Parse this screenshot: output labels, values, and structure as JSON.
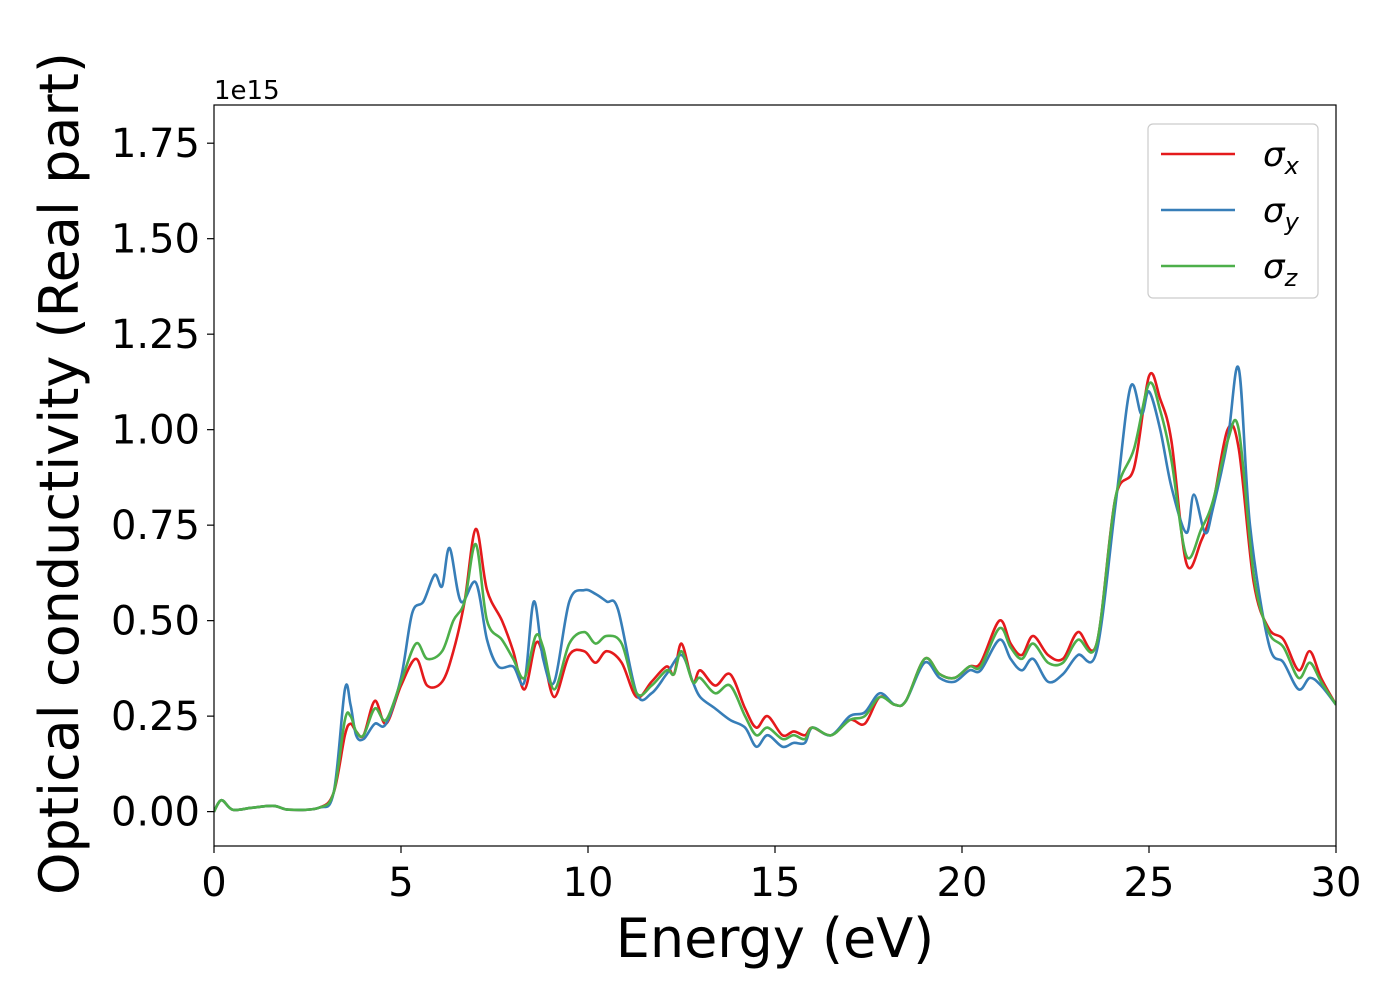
{
  "chart_data": {
    "type": "line",
    "xlabel": "Energy (eV)",
    "ylabel": "Optical conductivity (Real part)",
    "y_offset_label": "1e15",
    "xlim": [
      0,
      30
    ],
    "ylim": [
      -0.09,
      1.85
    ],
    "x_ticks": [
      0,
      5,
      10,
      15,
      20,
      25,
      30
    ],
    "y_ticks": [
      0.0,
      0.25,
      0.5,
      0.75,
      1.0,
      1.25,
      1.5,
      1.75
    ],
    "grid": false,
    "legend_position": "top-right",
    "series": [
      {
        "name": "σx",
        "symbol": "σ",
        "subscript": "x",
        "color": "#e41a1c",
        "points": [
          [
            0,
            0
          ],
          [
            0.2,
            0.03
          ],
          [
            0.5,
            0.005
          ],
          [
            1,
            0.01
          ],
          [
            1.6,
            0.015
          ],
          [
            2,
            0.005
          ],
          [
            2.8,
            0.01
          ],
          [
            3.2,
            0.05
          ],
          [
            3.5,
            0.2
          ],
          [
            3.65,
            0.23
          ],
          [
            3.8,
            0.21
          ],
          [
            4,
            0.2
          ],
          [
            4.3,
            0.29
          ],
          [
            4.6,
            0.23
          ],
          [
            5,
            0.33
          ],
          [
            5.4,
            0.4
          ],
          [
            5.7,
            0.33
          ],
          [
            6.1,
            0.34
          ],
          [
            6.4,
            0.42
          ],
          [
            6.7,
            0.55
          ],
          [
            7,
            0.74
          ],
          [
            7.3,
            0.58
          ],
          [
            7.7,
            0.5
          ],
          [
            8,
            0.42
          ],
          [
            8.3,
            0.32
          ],
          [
            8.6,
            0.44
          ],
          [
            8.8,
            0.41
          ],
          [
            9.1,
            0.3
          ],
          [
            9.5,
            0.41
          ],
          [
            9.9,
            0.42
          ],
          [
            10.2,
            0.39
          ],
          [
            10.5,
            0.42
          ],
          [
            10.9,
            0.39
          ],
          [
            11.3,
            0.3
          ],
          [
            11.7,
            0.34
          ],
          [
            12.1,
            0.38
          ],
          [
            12.3,
            0.36
          ],
          [
            12.5,
            0.44
          ],
          [
            12.8,
            0.34
          ],
          [
            13,
            0.37
          ],
          [
            13.4,
            0.33
          ],
          [
            13.8,
            0.36
          ],
          [
            14.2,
            0.27
          ],
          [
            14.5,
            0.22
          ],
          [
            14.8,
            0.25
          ],
          [
            15.2,
            0.2
          ],
          [
            15.5,
            0.21
          ],
          [
            15.8,
            0.2
          ],
          [
            16,
            0.22
          ],
          [
            16.5,
            0.2
          ],
          [
            17,
            0.24
          ],
          [
            17.4,
            0.23
          ],
          [
            17.8,
            0.3
          ],
          [
            18.2,
            0.28
          ],
          [
            18.5,
            0.29
          ],
          [
            19,
            0.4
          ],
          [
            19.4,
            0.36
          ],
          [
            19.8,
            0.35
          ],
          [
            20.2,
            0.38
          ],
          [
            20.5,
            0.39
          ],
          [
            21,
            0.5
          ],
          [
            21.3,
            0.44
          ],
          [
            21.6,
            0.41
          ],
          [
            21.9,
            0.46
          ],
          [
            22.3,
            0.41
          ],
          [
            22.7,
            0.4
          ],
          [
            23.1,
            0.47
          ],
          [
            23.6,
            0.44
          ],
          [
            24.1,
            0.82
          ],
          [
            24.6,
            0.9
          ],
          [
            25,
            1.14
          ],
          [
            25.3,
            1.08
          ],
          [
            25.6,
            0.97
          ],
          [
            26,
            0.65
          ],
          [
            26.4,
            0.71
          ],
          [
            26.7,
            0.8
          ],
          [
            27.1,
            1.0
          ],
          [
            27.4,
            0.95
          ],
          [
            27.8,
            0.6
          ],
          [
            28.2,
            0.48
          ],
          [
            28.6,
            0.45
          ],
          [
            29,
            0.37
          ],
          [
            29.3,
            0.42
          ],
          [
            29.6,
            0.35
          ],
          [
            30,
            0.28
          ]
        ]
      },
      {
        "name": "σy",
        "symbol": "σ",
        "subscript": "y",
        "color": "#377eb8",
        "points": [
          [
            0,
            0
          ],
          [
            0.2,
            0.03
          ],
          [
            0.5,
            0.005
          ],
          [
            1,
            0.01
          ],
          [
            1.6,
            0.015
          ],
          [
            2,
            0.005
          ],
          [
            2.8,
            0.01
          ],
          [
            3.2,
            0.05
          ],
          [
            3.5,
            0.32
          ],
          [
            3.65,
            0.28
          ],
          [
            3.8,
            0.2
          ],
          [
            4,
            0.19
          ],
          [
            4.3,
            0.23
          ],
          [
            4.6,
            0.23
          ],
          [
            5,
            0.35
          ],
          [
            5.3,
            0.52
          ],
          [
            5.6,
            0.55
          ],
          [
            5.9,
            0.62
          ],
          [
            6.1,
            0.59
          ],
          [
            6.3,
            0.69
          ],
          [
            6.6,
            0.55
          ],
          [
            7,
            0.6
          ],
          [
            7.3,
            0.45
          ],
          [
            7.6,
            0.38
          ],
          [
            8,
            0.38
          ],
          [
            8.3,
            0.34
          ],
          [
            8.55,
            0.55
          ],
          [
            8.8,
            0.4
          ],
          [
            9.1,
            0.34
          ],
          [
            9.5,
            0.55
          ],
          [
            9.9,
            0.58
          ],
          [
            10.2,
            0.57
          ],
          [
            10.5,
            0.55
          ],
          [
            10.8,
            0.53
          ],
          [
            11.3,
            0.31
          ],
          [
            11.7,
            0.31
          ],
          [
            12.1,
            0.36
          ],
          [
            12.5,
            0.41
          ],
          [
            12.8,
            0.34
          ],
          [
            13,
            0.3
          ],
          [
            13.4,
            0.27
          ],
          [
            13.8,
            0.24
          ],
          [
            14.2,
            0.22
          ],
          [
            14.5,
            0.17
          ],
          [
            14.8,
            0.2
          ],
          [
            15.2,
            0.17
          ],
          [
            15.5,
            0.18
          ],
          [
            15.8,
            0.18
          ],
          [
            16,
            0.22
          ],
          [
            16.5,
            0.2
          ],
          [
            17,
            0.25
          ],
          [
            17.4,
            0.26
          ],
          [
            17.8,
            0.31
          ],
          [
            18.2,
            0.28
          ],
          [
            18.5,
            0.29
          ],
          [
            19,
            0.39
          ],
          [
            19.4,
            0.35
          ],
          [
            19.8,
            0.34
          ],
          [
            20.2,
            0.37
          ],
          [
            20.5,
            0.37
          ],
          [
            21,
            0.45
          ],
          [
            21.3,
            0.4
          ],
          [
            21.6,
            0.37
          ],
          [
            21.9,
            0.4
          ],
          [
            22.3,
            0.34
          ],
          [
            22.7,
            0.36
          ],
          [
            23.1,
            0.41
          ],
          [
            23.6,
            0.42
          ],
          [
            24.1,
            0.8
          ],
          [
            24.5,
            1.11
          ],
          [
            24.8,
            1.04
          ],
          [
            25,
            1.1
          ],
          [
            25.3,
            1.0
          ],
          [
            25.6,
            0.85
          ],
          [
            26,
            0.73
          ],
          [
            26.2,
            0.83
          ],
          [
            26.5,
            0.73
          ],
          [
            26.7,
            0.79
          ],
          [
            27.1,
            0.97
          ],
          [
            27.4,
            1.16
          ],
          [
            27.7,
            0.75
          ],
          [
            28.2,
            0.44
          ],
          [
            28.6,
            0.39
          ],
          [
            29,
            0.32
          ],
          [
            29.3,
            0.35
          ],
          [
            29.6,
            0.33
          ],
          [
            30,
            0.28
          ]
        ]
      },
      {
        "name": "σz",
        "symbol": "σ",
        "subscript": "z",
        "color": "#4daf4a",
        "points": [
          [
            0,
            0
          ],
          [
            0.2,
            0.03
          ],
          [
            0.5,
            0.005
          ],
          [
            1,
            0.01
          ],
          [
            1.6,
            0.015
          ],
          [
            2,
            0.005
          ],
          [
            2.8,
            0.01
          ],
          [
            3.2,
            0.05
          ],
          [
            3.5,
            0.24
          ],
          [
            3.65,
            0.25
          ],
          [
            3.8,
            0.21
          ],
          [
            4,
            0.2
          ],
          [
            4.3,
            0.27
          ],
          [
            4.6,
            0.24
          ],
          [
            5,
            0.34
          ],
          [
            5.4,
            0.44
          ],
          [
            5.7,
            0.4
          ],
          [
            6.1,
            0.42
          ],
          [
            6.4,
            0.5
          ],
          [
            6.7,
            0.55
          ],
          [
            7,
            0.7
          ],
          [
            7.3,
            0.5
          ],
          [
            7.7,
            0.45
          ],
          [
            8,
            0.4
          ],
          [
            8.3,
            0.35
          ],
          [
            8.6,
            0.46
          ],
          [
            8.8,
            0.43
          ],
          [
            9.1,
            0.32
          ],
          [
            9.5,
            0.44
          ],
          [
            9.9,
            0.47
          ],
          [
            10.2,
            0.44
          ],
          [
            10.5,
            0.46
          ],
          [
            10.9,
            0.44
          ],
          [
            11.3,
            0.31
          ],
          [
            11.7,
            0.33
          ],
          [
            12.1,
            0.37
          ],
          [
            12.3,
            0.36
          ],
          [
            12.5,
            0.42
          ],
          [
            12.8,
            0.34
          ],
          [
            13,
            0.35
          ],
          [
            13.4,
            0.31
          ],
          [
            13.8,
            0.33
          ],
          [
            14.2,
            0.25
          ],
          [
            14.5,
            0.2
          ],
          [
            14.8,
            0.22
          ],
          [
            15.2,
            0.19
          ],
          [
            15.5,
            0.2
          ],
          [
            15.8,
            0.19
          ],
          [
            16,
            0.22
          ],
          [
            16.5,
            0.2
          ],
          [
            17,
            0.24
          ],
          [
            17.4,
            0.25
          ],
          [
            17.8,
            0.3
          ],
          [
            18.2,
            0.28
          ],
          [
            18.5,
            0.29
          ],
          [
            19,
            0.4
          ],
          [
            19.4,
            0.36
          ],
          [
            19.8,
            0.35
          ],
          [
            20.2,
            0.38
          ],
          [
            20.5,
            0.38
          ],
          [
            21,
            0.48
          ],
          [
            21.3,
            0.43
          ],
          [
            21.6,
            0.4
          ],
          [
            21.9,
            0.44
          ],
          [
            22.3,
            0.39
          ],
          [
            22.7,
            0.39
          ],
          [
            23.1,
            0.45
          ],
          [
            23.6,
            0.44
          ],
          [
            24.1,
            0.82
          ],
          [
            24.6,
            0.95
          ],
          [
            25,
            1.12
          ],
          [
            25.3,
            1.05
          ],
          [
            25.6,
            0.92
          ],
          [
            26,
            0.67
          ],
          [
            26.4,
            0.74
          ],
          [
            26.7,
            0.81
          ],
          [
            27.1,
            0.97
          ],
          [
            27.4,
            1.0
          ],
          [
            27.8,
            0.62
          ],
          [
            28.2,
            0.47
          ],
          [
            28.6,
            0.43
          ],
          [
            29,
            0.35
          ],
          [
            29.3,
            0.39
          ],
          [
            29.6,
            0.34
          ],
          [
            30,
            0.28
          ]
        ]
      }
    ]
  }
}
